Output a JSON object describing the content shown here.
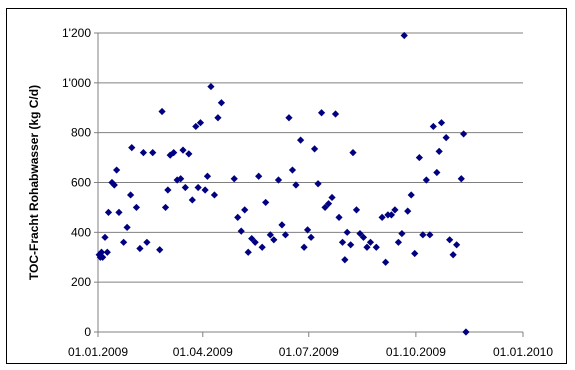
{
  "chart_data": {
    "type": "scatter",
    "title": "",
    "xlabel": "",
    "ylabel": "TOC-Fracht Rohabwasser (kg C/d)",
    "ylim": [
      0,
      1200
    ],
    "xlim": [
      "2009-01-01",
      "2010-01-01"
    ],
    "y_ticks": [
      0,
      200,
      400,
      600,
      800,
      1000,
      1200
    ],
    "y_tick_labels": [
      "0",
      "200",
      "400",
      "600",
      "800",
      "1'000",
      "1'200"
    ],
    "x_ticks": [
      "2009-01-01",
      "2009-04-01",
      "2009-07-01",
      "2009-10-01",
      "2010-01-01"
    ],
    "x_tick_labels": [
      "01.01.2009",
      "01.04.2009",
      "01.07.2009",
      "01.10.2009",
      "01.01.2010"
    ],
    "grid": "horizontal",
    "legend": "none",
    "marker": "diamond",
    "colors": {
      "marker": "#000080",
      "grid": "#808080",
      "axis": "#808080"
    },
    "points": [
      {
        "x": "2009-01-02",
        "y": 310
      },
      {
        "x": "2009-01-03",
        "y": 300
      },
      {
        "x": "2009-01-04",
        "y": 320
      },
      {
        "x": "2009-01-05",
        "y": 300
      },
      {
        "x": "2009-01-07",
        "y": 380
      },
      {
        "x": "2009-01-09",
        "y": 320
      },
      {
        "x": "2009-01-10",
        "y": 480
      },
      {
        "x": "2009-01-13",
        "y": 600
      },
      {
        "x": "2009-01-15",
        "y": 590
      },
      {
        "x": "2009-01-17",
        "y": 650
      },
      {
        "x": "2009-01-19",
        "y": 480
      },
      {
        "x": "2009-01-23",
        "y": 360
      },
      {
        "x": "2009-01-26",
        "y": 420
      },
      {
        "x": "2009-01-29",
        "y": 550
      },
      {
        "x": "2009-01-30",
        "y": 740
      },
      {
        "x": "2009-02-03",
        "y": 500
      },
      {
        "x": "2009-02-06",
        "y": 335
      },
      {
        "x": "2009-02-09",
        "y": 720
      },
      {
        "x": "2009-02-12",
        "y": 360
      },
      {
        "x": "2009-02-17",
        "y": 720
      },
      {
        "x": "2009-02-23",
        "y": 330
      },
      {
        "x": "2009-02-25",
        "y": 885
      },
      {
        "x": "2009-02-28",
        "y": 500
      },
      {
        "x": "2009-03-02",
        "y": 570
      },
      {
        "x": "2009-03-04",
        "y": 710
      },
      {
        "x": "2009-03-07",
        "y": 720
      },
      {
        "x": "2009-03-10",
        "y": 610
      },
      {
        "x": "2009-03-13",
        "y": 615
      },
      {
        "x": "2009-03-15",
        "y": 730
      },
      {
        "x": "2009-03-17",
        "y": 580
      },
      {
        "x": "2009-03-20",
        "y": 715
      },
      {
        "x": "2009-03-23",
        "y": 530
      },
      {
        "x": "2009-03-26",
        "y": 825
      },
      {
        "x": "2009-03-28",
        "y": 580
      },
      {
        "x": "2009-03-30",
        "y": 840
      },
      {
        "x": "2009-04-03",
        "y": 570
      },
      {
        "x": "2009-04-05",
        "y": 625
      },
      {
        "x": "2009-04-08",
        "y": 985
      },
      {
        "x": "2009-04-11",
        "y": 550
      },
      {
        "x": "2009-04-14",
        "y": 860
      },
      {
        "x": "2009-04-17",
        "y": 920
      },
      {
        "x": "2009-04-28",
        "y": 615
      },
      {
        "x": "2009-05-01",
        "y": 460
      },
      {
        "x": "2009-05-04",
        "y": 405
      },
      {
        "x": "2009-05-07",
        "y": 490
      },
      {
        "x": "2009-05-10",
        "y": 320
      },
      {
        "x": "2009-05-13",
        "y": 375
      },
      {
        "x": "2009-05-16",
        "y": 360
      },
      {
        "x": "2009-05-19",
        "y": 625
      },
      {
        "x": "2009-05-22",
        "y": 340
      },
      {
        "x": "2009-05-25",
        "y": 520
      },
      {
        "x": "2009-05-29",
        "y": 390
      },
      {
        "x": "2009-06-01",
        "y": 370
      },
      {
        "x": "2009-06-05",
        "y": 610
      },
      {
        "x": "2009-06-08",
        "y": 430
      },
      {
        "x": "2009-06-11",
        "y": 390
      },
      {
        "x": "2009-06-14",
        "y": 860
      },
      {
        "x": "2009-06-17",
        "y": 650
      },
      {
        "x": "2009-06-20",
        "y": 590
      },
      {
        "x": "2009-06-24",
        "y": 770
      },
      {
        "x": "2009-06-27",
        "y": 340
      },
      {
        "x": "2009-06-30",
        "y": 410
      },
      {
        "x": "2009-07-03",
        "y": 380
      },
      {
        "x": "2009-07-06",
        "y": 735
      },
      {
        "x": "2009-07-09",
        "y": 595
      },
      {
        "x": "2009-07-12",
        "y": 880
      },
      {
        "x": "2009-07-15",
        "y": 500
      },
      {
        "x": "2009-07-18",
        "y": 515
      },
      {
        "x": "2009-07-21",
        "y": 540
      },
      {
        "x": "2009-07-24",
        "y": 875
      },
      {
        "x": "2009-07-27",
        "y": 460
      },
      {
        "x": "2009-07-30",
        "y": 360
      },
      {
        "x": "2009-08-01",
        "y": 290
      },
      {
        "x": "2009-08-03",
        "y": 400
      },
      {
        "x": "2009-08-06",
        "y": 350
      },
      {
        "x": "2009-08-08",
        "y": 720
      },
      {
        "x": "2009-08-11",
        "y": 490
      },
      {
        "x": "2009-08-14",
        "y": 395
      },
      {
        "x": "2009-08-17",
        "y": 380
      },
      {
        "x": "2009-08-20",
        "y": 340
      },
      {
        "x": "2009-08-23",
        "y": 360
      },
      {
        "x": "2009-08-28",
        "y": 340
      },
      {
        "x": "2009-09-02",
        "y": 460
      },
      {
        "x": "2009-09-05",
        "y": 280
      },
      {
        "x": "2009-09-07",
        "y": 470
      },
      {
        "x": "2009-09-10",
        "y": 470
      },
      {
        "x": "2009-09-13",
        "y": 490
      },
      {
        "x": "2009-09-16",
        "y": 360
      },
      {
        "x": "2009-09-19",
        "y": 395
      },
      {
        "x": "2009-09-21",
        "y": 1190
      },
      {
        "x": "2009-09-24",
        "y": 485
      },
      {
        "x": "2009-09-27",
        "y": 550
      },
      {
        "x": "2009-09-30",
        "y": 315
      },
      {
        "x": "2009-10-04",
        "y": 700
      },
      {
        "x": "2009-10-07",
        "y": 390
      },
      {
        "x": "2009-10-10",
        "y": 610
      },
      {
        "x": "2009-10-13",
        "y": 390
      },
      {
        "x": "2009-10-16",
        "y": 825
      },
      {
        "x": "2009-10-19",
        "y": 640
      },
      {
        "x": "2009-10-21",
        "y": 725
      },
      {
        "x": "2009-10-23",
        "y": 840
      },
      {
        "x": "2009-10-27",
        "y": 780
      },
      {
        "x": "2009-10-30",
        "y": 370
      },
      {
        "x": "2009-11-02",
        "y": 310
      },
      {
        "x": "2009-11-05",
        "y": 350
      },
      {
        "x": "2009-11-09",
        "y": 615
      },
      {
        "x": "2009-11-11",
        "y": 795
      },
      {
        "x": "2009-11-13",
        "y": 0
      }
    ]
  }
}
